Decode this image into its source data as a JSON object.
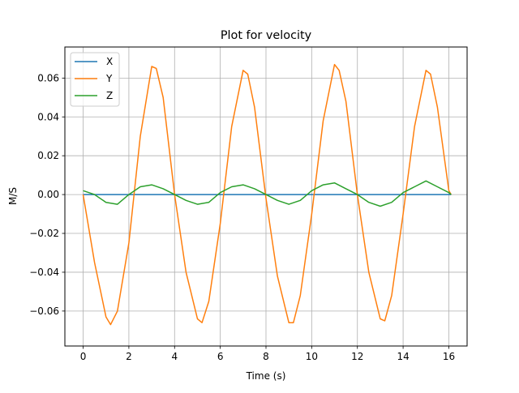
{
  "chart_data": {
    "type": "line",
    "title": "Plot for velocity",
    "xlabel": "Time (s)",
    "ylabel": "M/S",
    "xlim": [
      -0.8,
      16.8
    ],
    "ylim": [
      -0.078,
      0.076
    ],
    "xticks": [
      0,
      2,
      4,
      6,
      8,
      10,
      12,
      14,
      16
    ],
    "yticks": [
      -0.06,
      -0.04,
      -0.02,
      0.0,
      0.02,
      0.04,
      0.06
    ],
    "ytick_labels": [
      "−0.06",
      "−0.04",
      "−0.02",
      "0.00",
      "0.02",
      "0.04",
      "0.06"
    ],
    "grid": true,
    "legend_position": "upper-left",
    "series": [
      {
        "name": "X",
        "color": "#1f77b4",
        "x": [
          0,
          16.1
        ],
        "y": [
          0.0,
          0.0
        ]
      },
      {
        "name": "Y",
        "color": "#ff7f0e",
        "x": [
          0,
          0.5,
          1.0,
          1.2,
          1.5,
          2.0,
          2.5,
          3.0,
          3.2,
          3.5,
          4.0,
          4.5,
          5.0,
          5.2,
          5.5,
          6.0,
          6.5,
          7.0,
          7.2,
          7.5,
          8.0,
          8.5,
          9.0,
          9.2,
          9.5,
          10.0,
          10.5,
          11.0,
          11.2,
          11.5,
          12.0,
          12.5,
          13.0,
          13.2,
          13.5,
          14.0,
          14.5,
          15.0,
          15.2,
          15.5,
          16.0,
          16.1
        ],
        "y": [
          0.0,
          -0.035,
          -0.063,
          -0.067,
          -0.06,
          -0.025,
          0.03,
          0.066,
          0.065,
          0.05,
          0.0,
          -0.04,
          -0.064,
          -0.066,
          -0.055,
          -0.015,
          0.035,
          0.064,
          0.062,
          0.045,
          -0.002,
          -0.042,
          -0.066,
          -0.066,
          -0.052,
          -0.01,
          0.038,
          0.067,
          0.064,
          0.048,
          0.0,
          -0.04,
          -0.064,
          -0.065,
          -0.052,
          -0.01,
          0.035,
          0.064,
          0.062,
          0.045,
          0.002,
          0.0
        ]
      },
      {
        "name": "Z",
        "color": "#2ca02c",
        "x": [
          0,
          0.5,
          1.0,
          1.5,
          2.0,
          2.5,
          3.0,
          3.5,
          4.0,
          4.5,
          5.0,
          5.5,
          6.0,
          6.5,
          7.0,
          7.5,
          8.0,
          8.5,
          9.0,
          9.5,
          10.0,
          10.5,
          11.0,
          11.5,
          12.0,
          12.5,
          13.0,
          13.5,
          14.0,
          14.5,
          15.0,
          15.5,
          16.0,
          16.1
        ],
        "y": [
          0.002,
          0.0,
          -0.004,
          -0.005,
          0.0,
          0.004,
          0.005,
          0.003,
          0.0,
          -0.003,
          -0.005,
          -0.004,
          0.001,
          0.004,
          0.005,
          0.003,
          0.0,
          -0.003,
          -0.005,
          -0.003,
          0.002,
          0.005,
          0.006,
          0.003,
          0.0,
          -0.004,
          -0.006,
          -0.004,
          0.001,
          0.004,
          0.007,
          0.004,
          0.001,
          0.0
        ]
      }
    ]
  }
}
